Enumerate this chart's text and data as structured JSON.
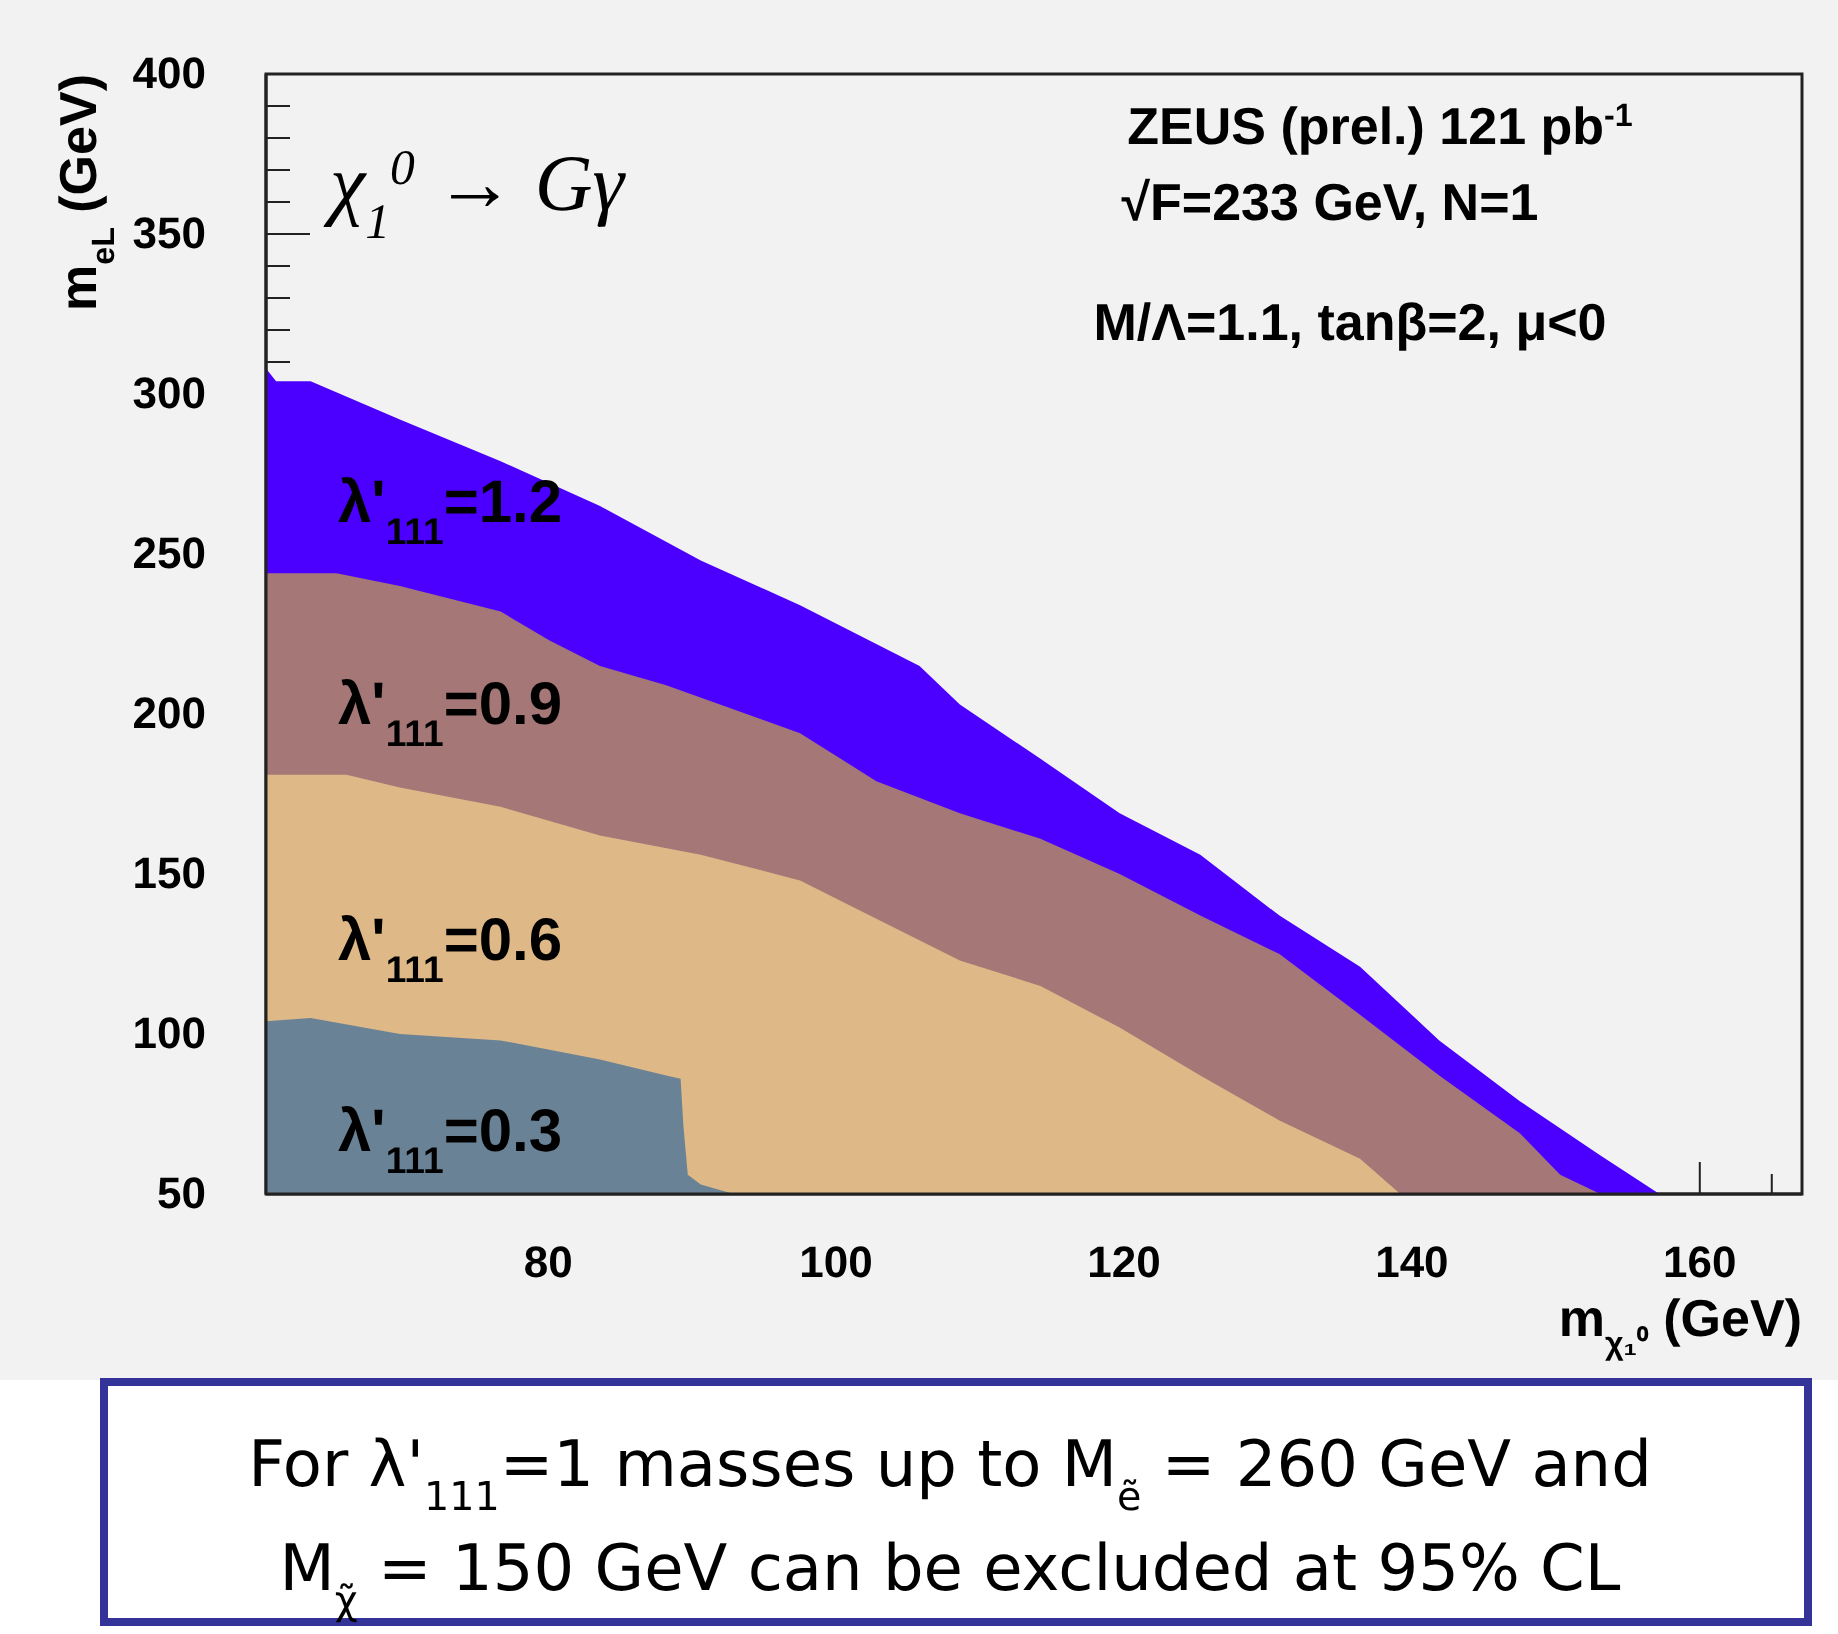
{
  "chart_data": {
    "type": "area",
    "xlabel": "m$_{χ₁⁰}$ (GeV)",
    "ylabel": "m$_{eL}$ (GeV)",
    "xlim": [
      60.4,
      167.1
    ],
    "xticks": [
      80,
      100,
      120,
      140,
      160,
      {
        "value": 165,
        "label": null
      }
    ],
    "ylim": [
      50,
      400
    ],
    "yticks": [
      50,
      100,
      150,
      200,
      250,
      300,
      350,
      400,
      {
        "value": 310,
        "label": null
      },
      {
        "value": 320,
        "label": null
      },
      {
        "value": 330,
        "label": null
      },
      {
        "value": 340,
        "label": null
      },
      {
        "value": 360,
        "label": null
      },
      {
        "value": 370,
        "label": null
      },
      {
        "value": 380,
        "label": null
      },
      {
        "value": 390,
        "label": null
      }
    ],
    "grid": false,
    "series": [
      {
        "name": "λ'$_{111}$=1.2",
        "color": "#4b00ff",
        "x": [
          60.4,
          61.1,
          63.5,
          69.7,
          76.7,
          83.6,
          90.6,
          97.5,
          105.8,
          108.6,
          114.2,
          119.7,
          125.3,
          130.8,
          136.4,
          141.9,
          147.5,
          153.1,
          157.2
        ],
        "values": [
          308,
          304,
          304,
          292,
          279,
          265,
          248,
          234,
          215,
          203,
          186,
          169,
          156,
          137,
          121,
          98,
          79,
          62,
          50
        ]
      },
      {
        "name": "λ'$_{111}$=0.9",
        "color": "#a57777",
        "x": [
          60.4,
          65.3,
          69.7,
          76.7,
          80.1,
          83.6,
          88.2,
          97.5,
          102.8,
          108.6,
          114.2,
          119.7,
          125.3,
          130.8,
          136.4,
          141.9,
          147.5,
          150.3,
          153.1
        ],
        "values": [
          244,
          244,
          240,
          232,
          223,
          215,
          209,
          194,
          179,
          169,
          161,
          150,
          137,
          125,
          106,
          87,
          69,
          56,
          50
        ]
      },
      {
        "name": "λ'$_{111}$=0.6",
        "color": "#deb887",
        "x": [
          60.4,
          66.0,
          69.7,
          76.7,
          83.6,
          90.6,
          97.5,
          102.8,
          108.6,
          114.2,
          119.7,
          125.3,
          130.8,
          136.4,
          139.2
        ],
        "values": [
          181,
          181,
          177,
          171,
          162,
          156,
          148,
          136,
          123,
          115,
          102,
          87,
          73,
          61,
          50
        ]
      },
      {
        "name": "λ'$_{111}$=0.3",
        "color": "#6a8295",
        "x": [
          60.4,
          63.5,
          69.7,
          76.7,
          83.6,
          88.2,
          89.2,
          89.4,
          89.7,
          90.6,
          92.9
        ],
        "values": [
          104,
          105,
          100,
          98,
          92,
          87,
          86,
          71,
          56,
          53,
          50
        ]
      }
    ],
    "annotations": [
      "χ$_{1}$$^{0}$ → Gγ",
      "ZEUS (prel.) 121 pb$^{-1}$",
      "√F=233 GeV, N=1",
      "M/Λ=1.1, tanβ=2, μ<0",
      "For λ'$_{111}$=1 masses up to M$_{ẽ}$ = 260 GeV and",
      "M$_{χ̃}$ = 150 GeV can be excluded at 95% CL"
    ]
  }
}
